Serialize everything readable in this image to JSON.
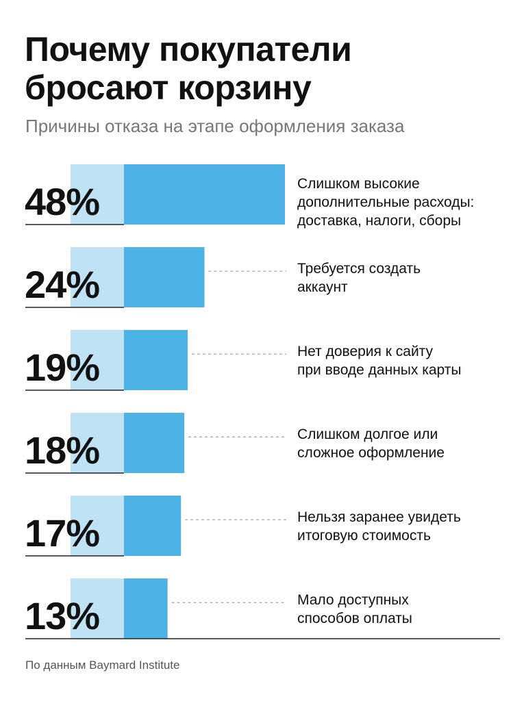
{
  "title_lines": [
    "Почему покупатели",
    "бросают корзину"
  ],
  "subtitle": "Причины отказа на этапе оформления заказа",
  "source": "По данным Baymard Institute",
  "colors": {
    "bar": "#4db3e6",
    "bar_light": "#bfe3f5",
    "text": "#111111",
    "muted": "#777777",
    "dash": "#999999"
  },
  "chart_data": {
    "type": "bar",
    "orientation": "horizontal",
    "categories": [
      [
        "Слишком высокие",
        "дополнительные расходы:",
        "доставка, налоги, сборы"
      ],
      [
        "Требуется создать",
        "аккаунт"
      ],
      [
        "Нет доверия к сайту",
        "при вводе данных карты"
      ],
      [
        "Слишком долгое или",
        "сложное оформление"
      ],
      [
        "Нельзя заранее увидеть",
        "итоговую стоимость"
      ],
      [
        "Мало доступных",
        "способов оплаты"
      ]
    ],
    "values": [
      48,
      24,
      19,
      18,
      17,
      13
    ],
    "value_labels": [
      "48%",
      "24%",
      "19%",
      "18%",
      "17%",
      "13%"
    ],
    "unit": "%",
    "xlim": [
      0,
      48
    ]
  }
}
